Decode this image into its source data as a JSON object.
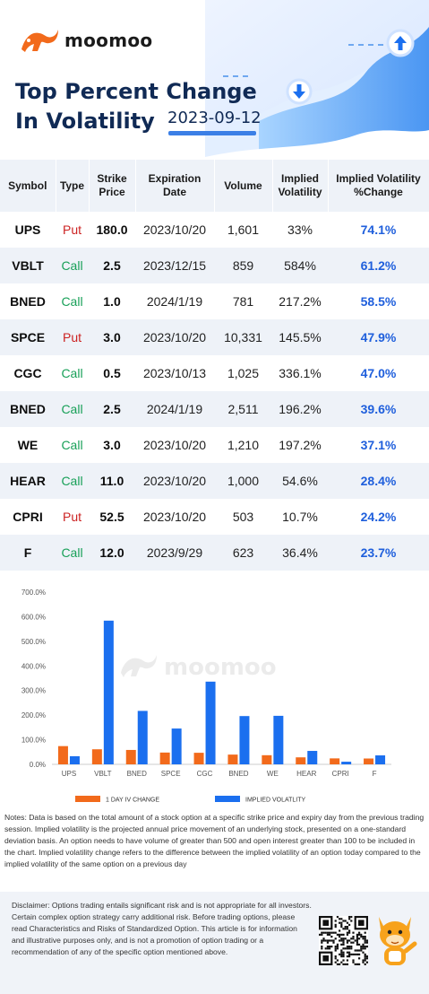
{
  "brand": {
    "name": "moomoo",
    "logo_icon": "bull-logo-icon"
  },
  "header": {
    "title_line1": "Top Percent Change",
    "title_line2": "In Volatility",
    "date": "2023-09-12"
  },
  "table": {
    "headers": {
      "symbol": "Symbol",
      "type": "Type",
      "strike_1": "Strike",
      "strike_2": "Price",
      "exp_1": "Expiration",
      "exp_2": "Date",
      "volume": "Volume",
      "iv_1": "Implied",
      "iv_2": "Volatility",
      "ivc_1": "Implied Volatility",
      "ivc_2": "%Change"
    },
    "rows": [
      {
        "symbol": "UPS",
        "type": "Put",
        "strike": "180.0",
        "expiration": "2023/10/20",
        "volume": "1,601",
        "iv": "33%",
        "iv_change": "74.1%"
      },
      {
        "symbol": "VBLT",
        "type": "Call",
        "strike": "2.5",
        "expiration": "2023/12/15",
        "volume": "859",
        "iv": "584%",
        "iv_change": "61.2%"
      },
      {
        "symbol": "BNED",
        "type": "Call",
        "strike": "1.0",
        "expiration": "2024/1/19",
        "volume": "781",
        "iv": "217.2%",
        "iv_change": "58.5%"
      },
      {
        "symbol": "SPCE",
        "type": "Put",
        "strike": "3.0",
        "expiration": "2023/10/20",
        "volume": "10,331",
        "iv": "145.5%",
        "iv_change": "47.9%"
      },
      {
        "symbol": "CGC",
        "type": "Call",
        "strike": "0.5",
        "expiration": "2023/10/13",
        "volume": "1,025",
        "iv": "336.1%",
        "iv_change": "47.0%"
      },
      {
        "symbol": "BNED",
        "type": "Call",
        "strike": "2.5",
        "expiration": "2024/1/19",
        "volume": "2,511",
        "iv": "196.2%",
        "iv_change": "39.6%"
      },
      {
        "symbol": "WE",
        "type": "Call",
        "strike": "3.0",
        "expiration": "2023/10/20",
        "volume": "1,210",
        "iv": "197.2%",
        "iv_change": "37.1%"
      },
      {
        "symbol": "HEAR",
        "type": "Call",
        "strike": "11.0",
        "expiration": "2023/10/20",
        "volume": "1,000",
        "iv": "54.6%",
        "iv_change": "28.4%"
      },
      {
        "symbol": "CPRI",
        "type": "Put",
        "strike": "52.5",
        "expiration": "2023/10/20",
        "volume": "503",
        "iv": "10.7%",
        "iv_change": "24.2%"
      },
      {
        "symbol": "F",
        "type": "Call",
        "strike": "12.0",
        "expiration": "2023/9/29",
        "volume": "623",
        "iv": "36.4%",
        "iv_change": "23.7%"
      }
    ]
  },
  "chart_data": {
    "type": "bar",
    "categories": [
      "UPS",
      "VBLT",
      "BNED",
      "SPCE",
      "CGC",
      "BNED",
      "WE",
      "HEAR",
      "CPRI",
      "F"
    ],
    "series": [
      {
        "name": "1 DAY IV CHANGE",
        "color": "#f26a1b",
        "values": [
          74.1,
          61.2,
          58.5,
          47.9,
          47.0,
          39.6,
          37.1,
          28.4,
          24.2,
          23.7
        ]
      },
      {
        "name": "IMPLIED VOLATLITY",
        "color": "#1b6fef",
        "values": [
          33,
          584,
          217.2,
          145.5,
          336.1,
          196.2,
          197.2,
          54.6,
          10.7,
          36.4
        ]
      }
    ],
    "yticks": [
      "0.0%",
      "100.0%",
      "200.0%",
      "300.0%",
      "400.0%",
      "500.0%",
      "600.0%",
      "700.0%"
    ],
    "ylim": [
      0,
      700
    ],
    "legend_position": "bottom",
    "grid": false
  },
  "notes": "Notes: Data is based on the total amount of a stock option at a specific strike price and expiry day from the previous trading session. Implied volatility is the projected annual price movement of an underlying stock, presented on a one-standard deviation basis. An option needs to have volume of greater than 500 and open interest greater than 100 to be included in the chart. Implied volatility change refers to the difference between the implied volatility of an option today compared to the implied volatility of the same option on a previous day",
  "disclaimer": "Disclaimer: Options trading entails significant risk and is not appropriate for all investors. Certain complex option strategy carry additional risk. Before trading options, please read Characteristics and Risks of Standardized Option. This article is for information and illustrative purposes only, and is not a promotion of option trading or a recommendation of any of the specific option mentioned above.",
  "icons": {
    "qr": "qr-code-icon",
    "mascot": "moomoo-mascot-icon",
    "up_arrow": "up-arrow-icon",
    "down_arrow": "down-arrow-icon"
  }
}
